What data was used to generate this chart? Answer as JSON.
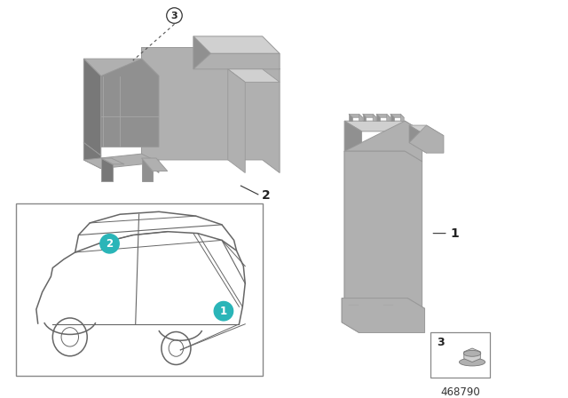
{
  "background_color": "#ffffff",
  "diagram_number": "468790",
  "label_color_bg": "#2ab5b8",
  "label_text_color": "#ffffff",
  "part_color_light": "#d0d0d0",
  "part_color_mid": "#b0b0b0",
  "part_color_dark": "#909090",
  "part_color_darker": "#787878",
  "car_line_color": "#666666",
  "edge_color": "#999999"
}
